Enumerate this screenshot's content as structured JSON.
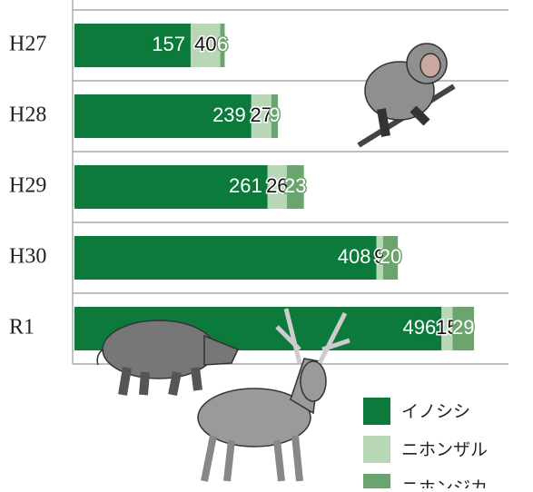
{
  "chart_data": {
    "type": "stacked-bar",
    "categories": [
      "H27",
      "H28",
      "H29",
      "H30",
      "R1"
    ],
    "series": [
      {
        "name": "イノシシ",
        "color": "#0b7a3b",
        "values": [
          157,
          239,
          261,
          408,
          496
        ]
      },
      {
        "name": "ニホンザル",
        "color": "#b7d7b6",
        "values": [
          40,
          27,
          26,
          9,
          15
        ]
      },
      {
        "name": "ニホンジカ",
        "color": "#6ba46e",
        "values": [
          6,
          9,
          23,
          20,
          29
        ]
      }
    ]
  }
}
